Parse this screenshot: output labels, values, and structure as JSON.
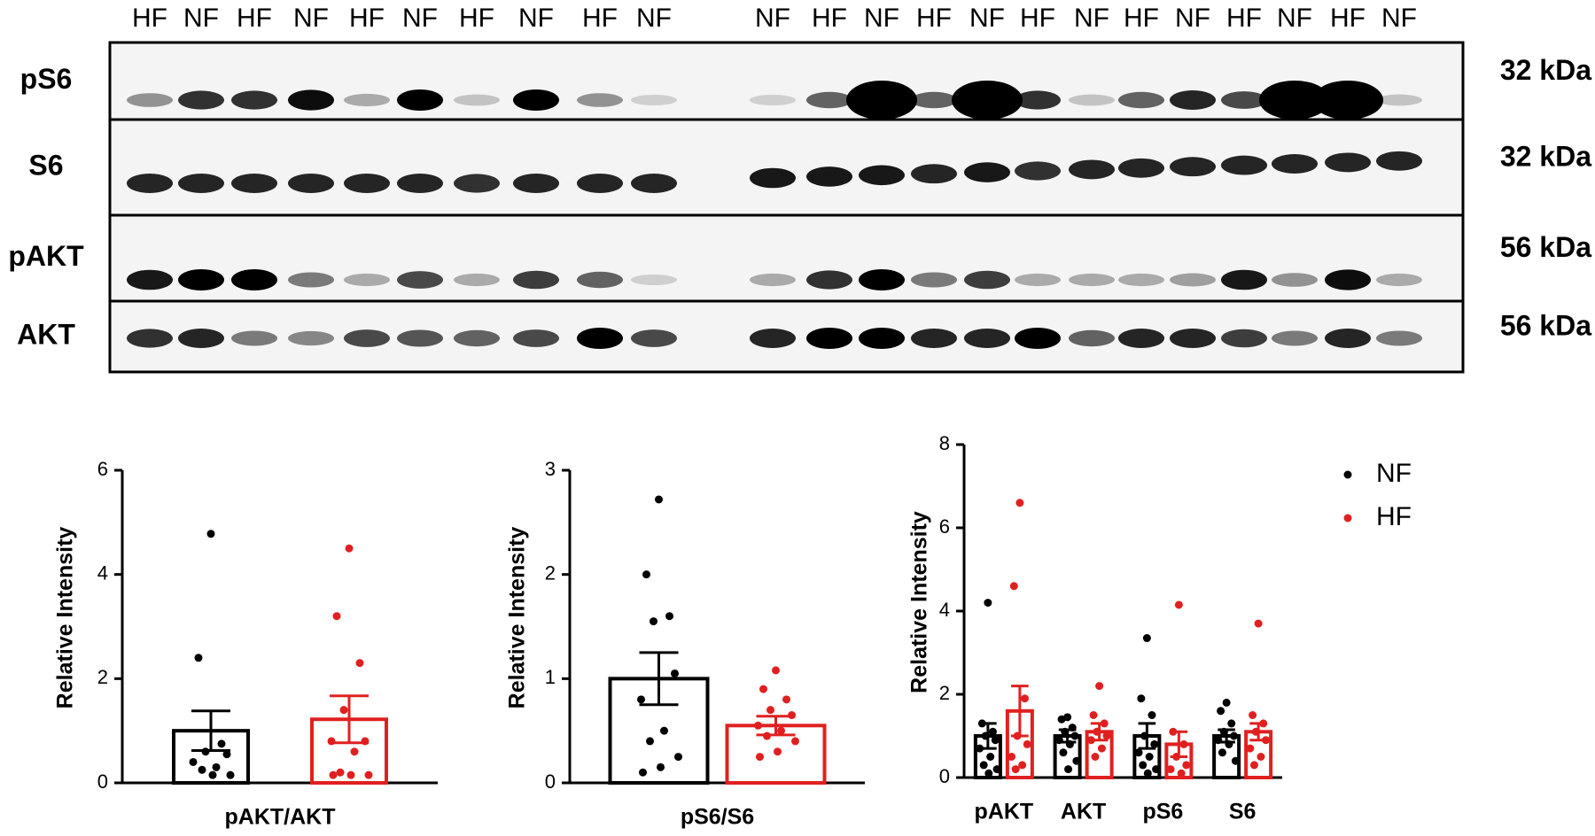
{
  "blot": {
    "lanes": [
      "HF",
      "NF",
      "HF",
      "NF",
      "HF",
      "NF",
      "HF",
      "NF",
      "HF",
      "NF",
      "NF",
      "HF",
      "NF",
      "HF",
      "NF",
      "HF",
      "NF",
      "HF",
      "NF",
      "HF",
      "NF",
      "HF",
      "NF"
    ],
    "rows": [
      {
        "label": "pS6",
        "size": "32 kDa"
      },
      {
        "label": "S6",
        "size": "32 kDa"
      },
      {
        "label": "pAKT",
        "size": "56 kDa"
      },
      {
        "label": "AKT",
        "size": "56 kDa"
      }
    ]
  },
  "chart_data": [
    {
      "type": "bar",
      "y_label": "Relative Intensity",
      "x_label": "pAKT/AKT",
      "categories": [
        "pAKT/AKT"
      ],
      "ylim": [
        0,
        6
      ],
      "yticks": [
        0,
        2,
        4,
        6
      ],
      "series": [
        {
          "color": "#000000",
          "values": [
            1.0
          ],
          "errors": [
            0.38
          ],
          "points": [
            [
              4.78,
              2.4,
              0.75,
              0.6,
              0.55,
              0.4,
              0.3,
              0.25,
              0.15,
              0.15
            ]
          ]
        },
        {
          "color": "#e02020",
          "values": [
            1.22
          ],
          "errors": [
            0.45
          ],
          "points": [
            [
              4.5,
              3.2,
              2.3,
              1.4,
              0.8,
              0.8,
              0.6,
              0.2,
              0.15,
              0.15,
              0.15
            ]
          ]
        }
      ]
    },
    {
      "type": "bar",
      "y_label": "Relative Intensity",
      "x_label": "pS6/S6",
      "categories": [
        "pS6/S6"
      ],
      "ylim": [
        0,
        3
      ],
      "yticks": [
        0,
        1,
        2,
        3
      ],
      "series": [
        {
          "color": "#000000",
          "values": [
            1.0
          ],
          "errors": [
            0.25
          ],
          "points": [
            [
              2.72,
              2.0,
              1.6,
              1.55,
              1.05,
              0.8,
              0.5,
              0.4,
              0.25,
              0.15,
              0.1
            ]
          ]
        },
        {
          "color": "#e02020",
          "values": [
            0.55
          ],
          "errors": [
            0.09
          ],
          "points": [
            [
              1.08,
              0.9,
              0.8,
              0.7,
              0.65,
              0.55,
              0.5,
              0.45,
              0.4,
              0.3,
              0.25
            ]
          ]
        }
      ]
    },
    {
      "type": "bar",
      "y_label": "Relative Intensity",
      "categories": [
        "pAKT",
        "AKT",
        "pS6",
        "S6"
      ],
      "ylim": [
        0,
        8
      ],
      "yticks": [
        0,
        2,
        4,
        6,
        8
      ],
      "legend": "upper right",
      "series": [
        {
          "name": "NF",
          "color": "#000000",
          "values": [
            1.0,
            1.0,
            1.0,
            1.0
          ],
          "errors": [
            0.3,
            0.15,
            0.3,
            0.15
          ],
          "points": [
            [
              4.2,
              1.3,
              1.1,
              1.0,
              0.9,
              0.7,
              0.5,
              0.3,
              0.2,
              0.1
            ],
            [
              1.45,
              1.4,
              1.2,
              1.1,
              1.0,
              0.9,
              0.8,
              0.6,
              0.4,
              0.2
            ],
            [
              3.35,
              1.9,
              1.5,
              1.0,
              0.8,
              0.6,
              0.5,
              0.3,
              0.2,
              0.1
            ],
            [
              1.8,
              1.6,
              1.3,
              1.1,
              1.0,
              0.9,
              0.8,
              0.6,
              0.4
            ]
          ]
        },
        {
          "name": "HF",
          "color": "#e02020",
          "values": [
            1.6,
            1.1,
            0.8,
            1.1
          ],
          "errors": [
            0.6,
            0.2,
            0.3,
            0.2
          ],
          "points": [
            [
              6.6,
              4.6,
              1.9,
              1.0,
              0.8,
              0.5,
              0.3,
              0.2
            ],
            [
              2.2,
              1.5,
              1.3,
              1.1,
              1.0,
              0.9,
              0.7,
              0.5
            ],
            [
              4.15,
              1.1,
              0.8,
              0.5,
              0.3,
              0.2,
              0.1
            ],
            [
              3.7,
              1.5,
              1.3,
              1.1,
              0.9,
              0.7,
              0.5,
              0.3
            ]
          ]
        }
      ]
    }
  ]
}
